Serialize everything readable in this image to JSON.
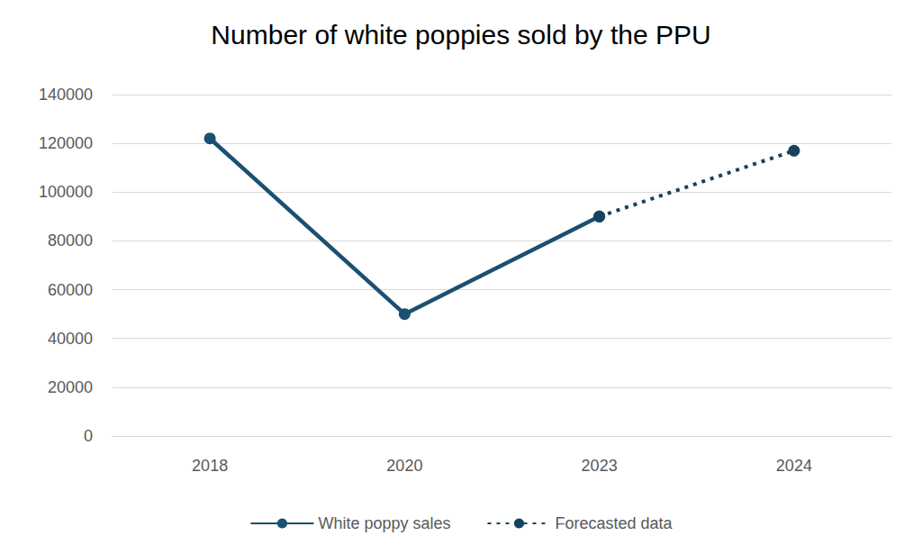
{
  "chart_data": {
    "type": "line",
    "title": "Number of white poppies sold by the PPU",
    "categories": [
      "2018",
      "2020",
      "2023",
      "2024"
    ],
    "series": [
      {
        "name": "White poppy sales",
        "color": "#1b5070",
        "values": [
          122000,
          50000,
          90000,
          null
        ],
        "line_style": "solid",
        "marker": "circle"
      },
      {
        "name": "Forecasted data",
        "color": "#154360",
        "values": [
          null,
          null,
          90000,
          117000
        ],
        "line_style": "dotted",
        "marker": "circle"
      }
    ],
    "ylim": [
      0,
      140000
    ],
    "yticks": [
      0,
      20000,
      40000,
      60000,
      80000,
      100000,
      120000,
      140000
    ],
    "grid": true,
    "legend": "bottom"
  }
}
